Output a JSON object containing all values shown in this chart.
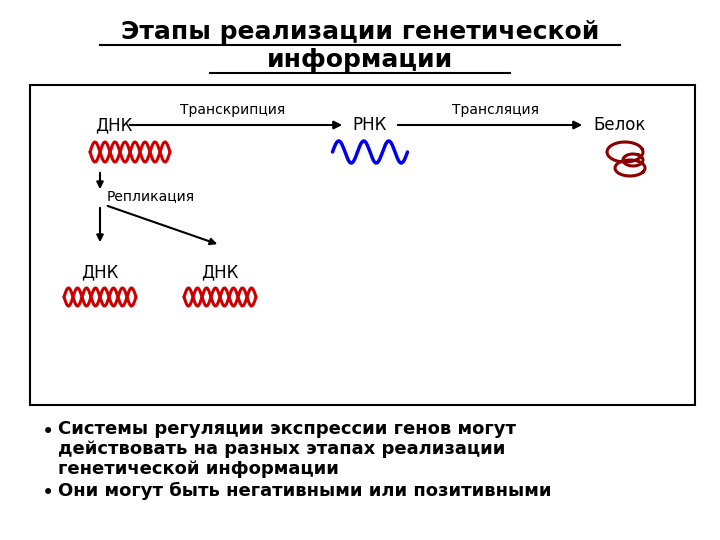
{
  "title_line1": "Этапы реализации генетической",
  "title_line2": "информации",
  "title_fontsize": 18,
  "bg_color": "#ffffff",
  "box_color": "#000000",
  "text_color": "#000000",
  "red_color": "#cc0000",
  "blue_color": "#0000ee",
  "dark_red_color": "#8b0000",
  "label_dnk": "ДНК",
  "label_rnk": "РНК",
  "label_belok": "Белок",
  "label_transkr": "Транскрипция",
  "label_transl": "Трансляция",
  "label_replik": "Репликация",
  "label_dnk2": "ДНК",
  "label_dnk3": "ДНК",
  "bullet1_line1": "Системы регуляции экспрессии генов могут",
  "bullet1_line2": "действовать на разных этапах реализации",
  "bullet1_line3": "генетической информации",
  "bullet2": "Они могут быть негативными или позитивными",
  "label_fontsize": 12,
  "small_fontsize": 10,
  "bullet_fontsize": 13
}
